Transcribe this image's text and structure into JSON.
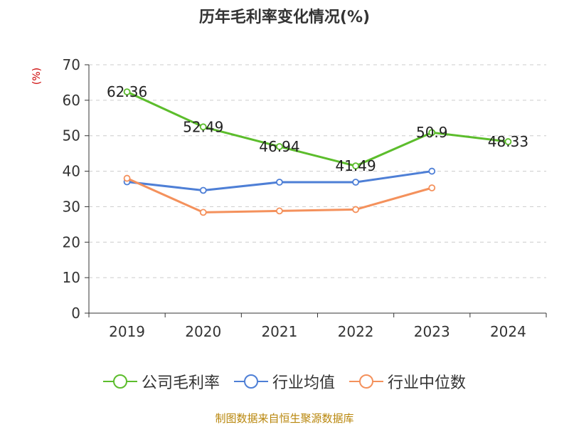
{
  "chart_data": {
    "type": "line",
    "title": "历年毛利率变化情况(%)",
    "ylabel": "(%)",
    "xlabel": "",
    "categories": [
      "2019",
      "2020",
      "2021",
      "2022",
      "2023",
      "2024"
    ],
    "ylim": [
      0,
      70
    ],
    "yticks": [
      0,
      10,
      20,
      30,
      40,
      50,
      60,
      70
    ],
    "grid": true,
    "legend_position": "bottom",
    "series": [
      {
        "name": "公司毛利率",
        "color": "#5cbd2c",
        "values": [
          62.36,
          52.49,
          46.94,
          41.49,
          50.9,
          48.33
        ],
        "data_labels": true
      },
      {
        "name": "行业均值",
        "color": "#4e7fd6",
        "values": [
          37,
          34.6,
          36.9,
          36.9,
          40,
          null
        ],
        "data_labels": false
      },
      {
        "name": "行业中位数",
        "color": "#f4915c",
        "values": [
          38,
          28.4,
          28.8,
          29.2,
          35.3,
          null
        ],
        "data_labels": false
      }
    ]
  },
  "ylabel_color": "#cc0000",
  "footer": {
    "text": "制图数据来自恒生聚源数据库",
    "color": "#b8860b"
  }
}
